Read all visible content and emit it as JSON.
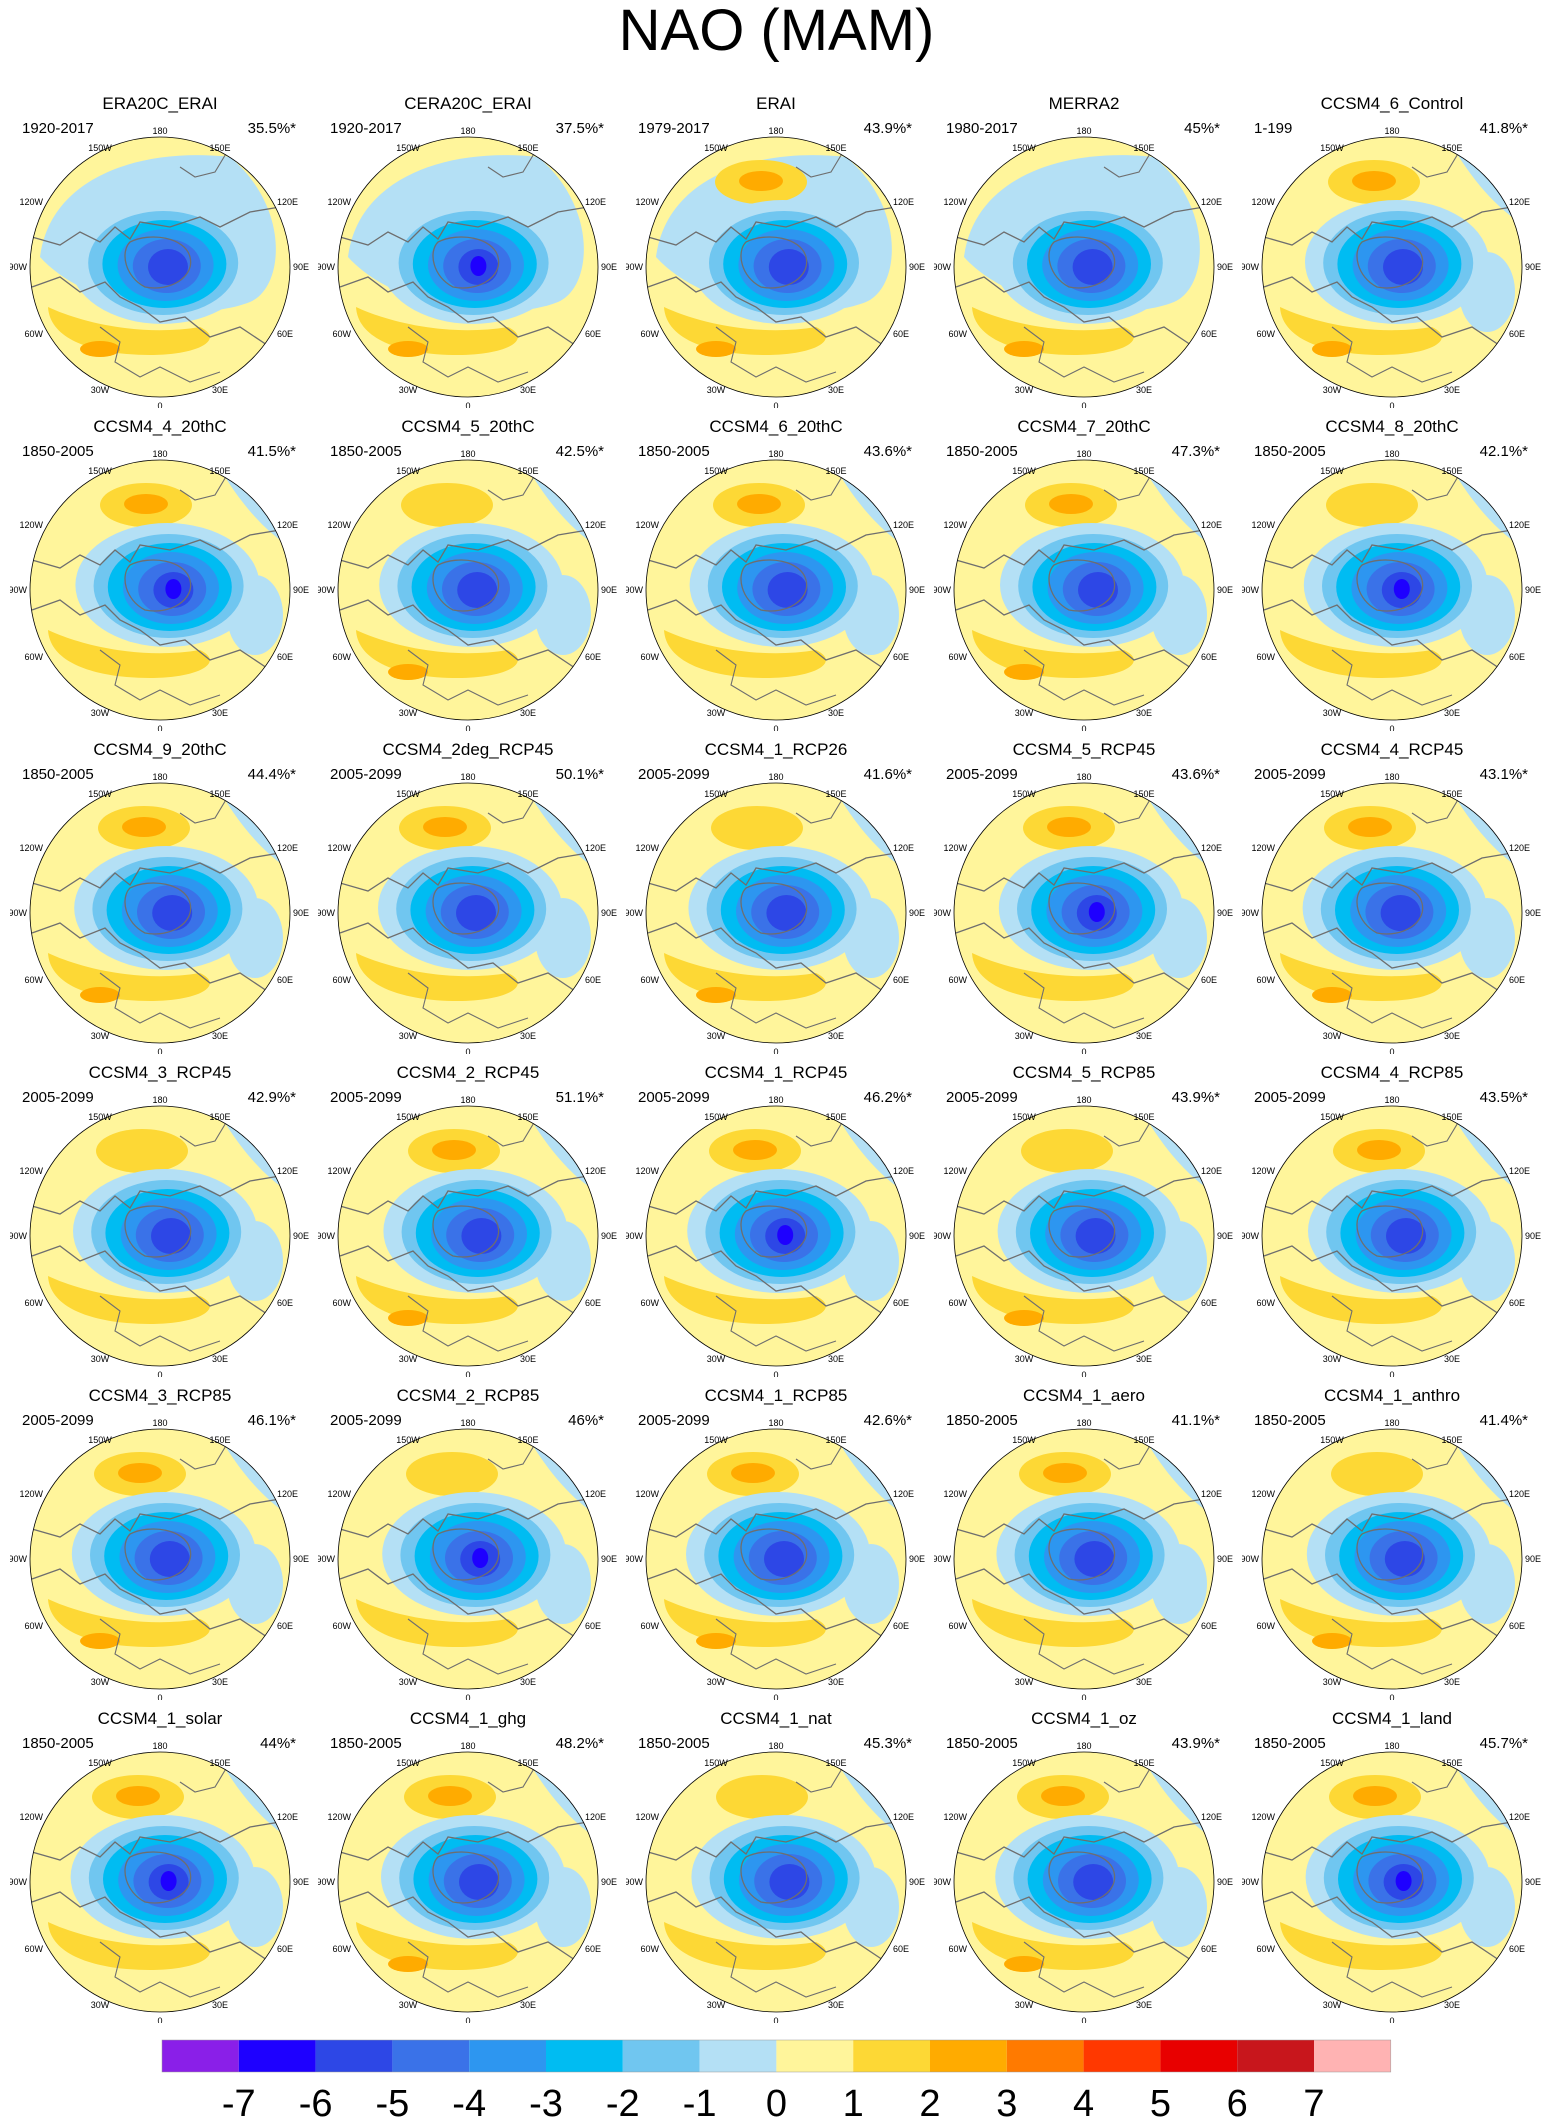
{
  "title": "NAO (MAM)",
  "colors": {
    "land_outline": "#6e6e6e",
    "map_border": "#000000"
  },
  "longitude_labels": [
    "180",
    "150W",
    "150E",
    "120W",
    "120E",
    "90W",
    "90E",
    "60W",
    "60E",
    "30W",
    "30E",
    "0"
  ],
  "panels": [
    {
      "name": "ERA20C_ERAI",
      "period": "1920-2017",
      "variance": "35.5%*"
    },
    {
      "name": "CERA20C_ERAI",
      "period": "1920-2017",
      "variance": "37.5%*"
    },
    {
      "name": "ERAI",
      "period": "1979-2017",
      "variance": "43.9%*"
    },
    {
      "name": "MERRA2",
      "period": "1980-2017",
      "variance": "45%*"
    },
    {
      "name": "CCSM4_6_Control",
      "period": "1-199",
      "variance": "41.8%*"
    },
    {
      "name": "CCSM4_4_20thC",
      "period": "1850-2005",
      "variance": "41.5%*"
    },
    {
      "name": "CCSM4_5_20thC",
      "period": "1850-2005",
      "variance": "42.5%*"
    },
    {
      "name": "CCSM4_6_20thC",
      "period": "1850-2005",
      "variance": "43.6%*"
    },
    {
      "name": "CCSM4_7_20thC",
      "period": "1850-2005",
      "variance": "47.3%*"
    },
    {
      "name": "CCSM4_8_20thC",
      "period": "1850-2005",
      "variance": "42.1%*"
    },
    {
      "name": "CCSM4_9_20thC",
      "period": "1850-2005",
      "variance": "44.4%*"
    },
    {
      "name": "CCSM4_2deg_RCP45",
      "period": "2005-2099",
      "variance": "50.1%*"
    },
    {
      "name": "CCSM4_1_RCP26",
      "period": "2005-2099",
      "variance": "41.6%*"
    },
    {
      "name": "CCSM4_5_RCP45",
      "period": "2005-2099",
      "variance": "43.6%*"
    },
    {
      "name": "CCSM4_4_RCP45",
      "period": "2005-2099",
      "variance": "43.1%*"
    },
    {
      "name": "CCSM4_3_RCP45",
      "period": "2005-2099",
      "variance": "42.9%*"
    },
    {
      "name": "CCSM4_2_RCP45",
      "period": "2005-2099",
      "variance": "51.1%*"
    },
    {
      "name": "CCSM4_1_RCP45",
      "period": "2005-2099",
      "variance": "46.2%*"
    },
    {
      "name": "CCSM4_5_RCP85",
      "period": "2005-2099",
      "variance": "43.9%*"
    },
    {
      "name": "CCSM4_4_RCP85",
      "period": "2005-2099",
      "variance": "43.5%*"
    },
    {
      "name": "CCSM4_3_RCP85",
      "period": "2005-2099",
      "variance": "46.1%*"
    },
    {
      "name": "CCSM4_2_RCP85",
      "period": "2005-2099",
      "variance": "46%*"
    },
    {
      "name": "CCSM4_1_RCP85",
      "period": "2005-2099",
      "variance": "42.6%*"
    },
    {
      "name": "CCSM4_1_aero",
      "period": "1850-2005",
      "variance": "41.1%*"
    },
    {
      "name": "CCSM4_1_anthro",
      "period": "1850-2005",
      "variance": "41.4%*"
    },
    {
      "name": "CCSM4_1_solar",
      "period": "1850-2005",
      "variance": "44%*"
    },
    {
      "name": "CCSM4_1_ghg",
      "period": "1850-2005",
      "variance": "48.2%*"
    },
    {
      "name": "CCSM4_1_nat",
      "period": "1850-2005",
      "variance": "45.3%*"
    },
    {
      "name": "CCSM4_1_oz",
      "period": "1850-2005",
      "variance": "43.9%*"
    },
    {
      "name": "CCSM4_1_land",
      "period": "1850-2005",
      "variance": "45.7%*"
    }
  ],
  "colorbar": {
    "labels": [
      "-7",
      "-6",
      "-5",
      "-4",
      "-3",
      "-2",
      "-1",
      "0",
      "1",
      "2",
      "3",
      "4",
      "5",
      "6",
      "7"
    ],
    "colors": [
      "#8a1fe8",
      "#1e00ff",
      "#2d47e6",
      "#3a72e8",
      "#2d96f0",
      "#00bcf2",
      "#70c6f0",
      "#b4e0f5",
      "#fff59b",
      "#fdd835",
      "#ffab00",
      "#ff7a00",
      "#ff3800",
      "#e80000",
      "#c8161c",
      "#ffb3b3"
    ]
  }
}
